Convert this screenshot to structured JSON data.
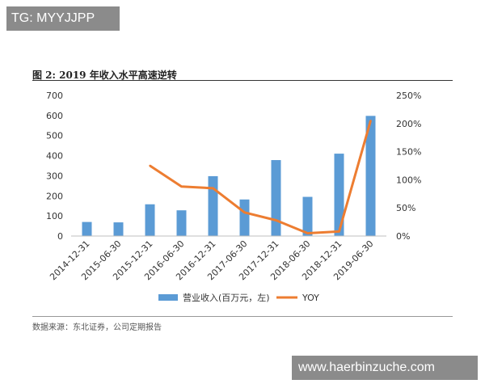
{
  "watermarks": {
    "top_left": "TG: MYYJJPP",
    "bottom_right": "www.haerbinzuche.com"
  },
  "figure": {
    "title": "图  2:  2019 年收入水平高速逆转",
    "source": "数据来源：东北证券，公司定期报告"
  },
  "chart_data": {
    "type": "bar+line",
    "categories": [
      "2014-12-31",
      "2015-06-30",
      "2015-12-31",
      "2016-06-30",
      "2016-12-31",
      "2017-06-30",
      "2017-12-31",
      "2018-06-30",
      "2018-12-31",
      "2019-06-30"
    ],
    "series": [
      {
        "name": "营业收入(百万元，左)",
        "type": "bar",
        "axis": "left",
        "values": [
          70,
          68,
          158,
          128,
          298,
          182,
          378,
          195,
          410,
          598
        ]
      },
      {
        "name": "YOY",
        "type": "line",
        "axis": "right",
        "values": [
          null,
          null,
          1.25,
          0.88,
          0.85,
          0.42,
          0.28,
          0.05,
          0.08,
          2.05
        ]
      }
    ],
    "y_left": {
      "ylim": [
        0,
        700
      ],
      "ticks": [
        "0",
        "100",
        "200",
        "300",
        "400",
        "500",
        "600",
        "700"
      ]
    },
    "y_right": {
      "ylim": [
        0,
        2.5
      ],
      "ticks": [
        "0%",
        "50%",
        "100%",
        "150%",
        "200%",
        "250%"
      ]
    },
    "colors": {
      "bar": "#5b9bd5",
      "line": "#ed7d31"
    },
    "legend_position": "bottom",
    "grid": false
  }
}
